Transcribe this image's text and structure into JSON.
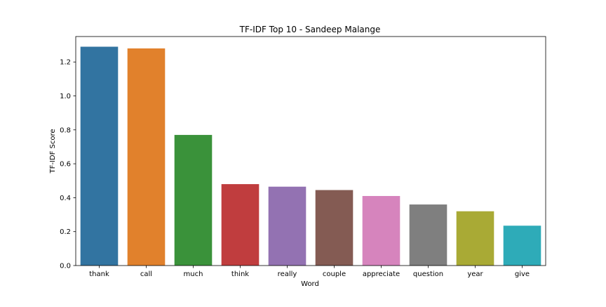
{
  "chart_data": {
    "type": "bar",
    "title": "TF-IDF Top 10 - Sandeep Malange",
    "xlabel": "Word",
    "ylabel": "TF-IDF Score",
    "categories": [
      "thank",
      "call",
      "much",
      "think",
      "really",
      "couple",
      "appreciate",
      "question",
      "year",
      "give"
    ],
    "values": [
      1.29,
      1.28,
      0.77,
      0.48,
      0.465,
      0.445,
      0.41,
      0.36,
      0.32,
      0.235
    ],
    "colors": [
      "#3274a1",
      "#e1812c",
      "#3a923a",
      "#c03d3e",
      "#9372b2",
      "#845b53",
      "#d684bd",
      "#7f7f7f",
      "#a9aa35",
      "#2eabb8"
    ],
    "ylim": [
      0,
      1.35
    ],
    "yticks": [
      0.0,
      0.2,
      0.4,
      0.6,
      0.8,
      1.0,
      1.2
    ],
    "ytick_labels": [
      "0.0",
      "0.2",
      "0.4",
      "0.6",
      "0.8",
      "1.0",
      "1.2"
    ],
    "grid": false,
    "legend": "none"
  }
}
